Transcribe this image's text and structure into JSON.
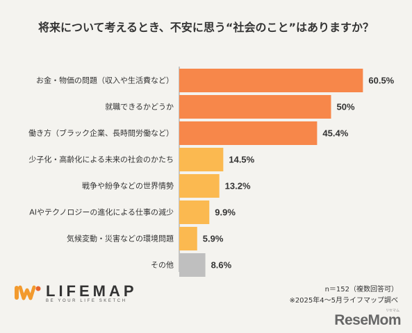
{
  "chart_data": {
    "type": "bar",
    "orientation": "horizontal",
    "title": "将来について考えるとき、不安に思う“社会のこと”はありますか？",
    "categories": [
      "お金・物価の問題（収入や生活費など）",
      "就職できるかどうか",
      "働き方（ブラック企業、長時間労働など）",
      "少子化・高齢化による未来の社会のかたち",
      "戦争や紛争などの世界情勢",
      "AIやテクノロジーの進化による仕事の減少",
      "気候変動・災害などの環境問題",
      "その他"
    ],
    "values": [
      60.5,
      50,
      45.4,
      14.5,
      13.2,
      9.9,
      5.9,
      8.6
    ],
    "value_labels": [
      "60.5%",
      "50%",
      "45.4%",
      "14.5%",
      "13.2%",
      "9.9%",
      "5.9%",
      "8.6%"
    ],
    "bar_colors": [
      "#f7874a",
      "#f7874a",
      "#f7874a",
      "#fbb950",
      "#fbb950",
      "#fbb950",
      "#fbb950",
      "#bfbfbf"
    ],
    "xlim": [
      0,
      100
    ],
    "grid": false,
    "legend": "none"
  },
  "notes": {
    "sample": "n＝152（複数回答可）",
    "source": "※2025年4～5月ライフマップ調べ"
  },
  "logo": {
    "name": "LIFEMAP",
    "tagline": "BE YOUR LIFE SKETCH",
    "colors": [
      "#f29a2e",
      "#e8642b"
    ]
  },
  "watermark": {
    "text": "ReseMom",
    "ruby": "リセマム"
  }
}
